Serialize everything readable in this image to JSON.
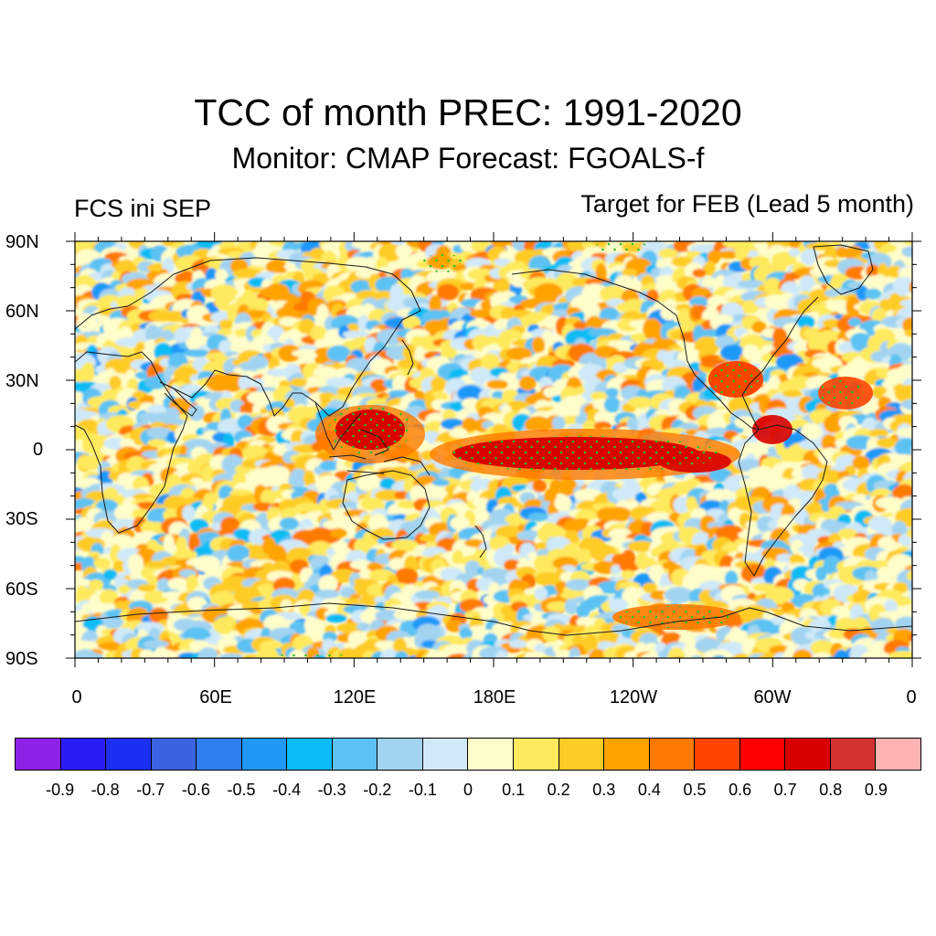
{
  "title": "TCC of month PREC: 1991-2020",
  "subtitle": "Monitor: CMAP   Forecast: FGOALS-f",
  "left_label": "FCS ini SEP",
  "right_label": "Target for FEB (Lead 5 month)",
  "map": {
    "projection": "cylindrical equidistant",
    "lon_range": [
      0,
      360
    ],
    "lat_range": [
      -90,
      90
    ],
    "lat_labels": [
      "90N",
      "60N",
      "30N",
      "0",
      "30S",
      "60S",
      "90S"
    ],
    "lon_labels": [
      "0",
      "60E",
      "120E",
      "180E",
      "120W",
      "60W",
      "0"
    ],
    "stippling_color": "#2bbf2b",
    "coastline_color": "#1a1a1a"
  },
  "colorbar": {
    "colors": [
      "#8c21e8",
      "#2a1cf5",
      "#1d2ff0",
      "#3a62e2",
      "#2f7ff0",
      "#1f98f8",
      "#0bbcf5",
      "#5cc2f3",
      "#a2d4f1",
      "#cfe9f8",
      "#fffdc9",
      "#ffe95c",
      "#ffcc26",
      "#ffa300",
      "#ff7a00",
      "#ff4400",
      "#ff0000",
      "#d90000",
      "#d13333",
      "#ffb2b2"
    ],
    "labels": [
      "-0.9",
      "-0.8",
      "-0.7",
      "-0.6",
      "-0.5",
      "-0.4",
      "-0.3",
      "-0.2",
      "-0.1",
      "0",
      "0.1",
      "0.2",
      "0.3",
      "0.4",
      "0.5",
      "0.6",
      "0.7",
      "0.8",
      "0.9"
    ]
  }
}
